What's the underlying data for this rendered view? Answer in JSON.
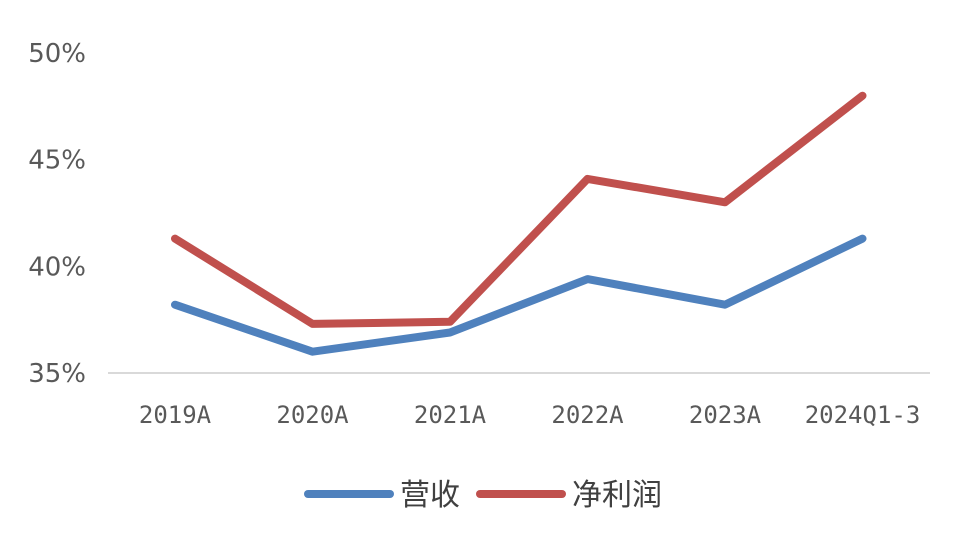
{
  "chart_data": {
    "type": "line",
    "categories": [
      "2019A",
      "2020A",
      "2021A",
      "2022A",
      "2023A",
      "2024Q1-3"
    ],
    "y_ticks": [
      "35%",
      "40%",
      "45%",
      "50%"
    ],
    "ylim": [
      35,
      50
    ],
    "grid": false,
    "legend_position": "bottom",
    "series": [
      {
        "name": "营收",
        "color": "#4f81bd",
        "values": [
          38.2,
          36.0,
          36.9,
          39.4,
          38.2,
          41.3
        ]
      },
      {
        "name": "净利润",
        "color": "#c0504d",
        "values": [
          41.3,
          37.3,
          37.4,
          44.1,
          43.0,
          48.0
        ]
      }
    ]
  }
}
